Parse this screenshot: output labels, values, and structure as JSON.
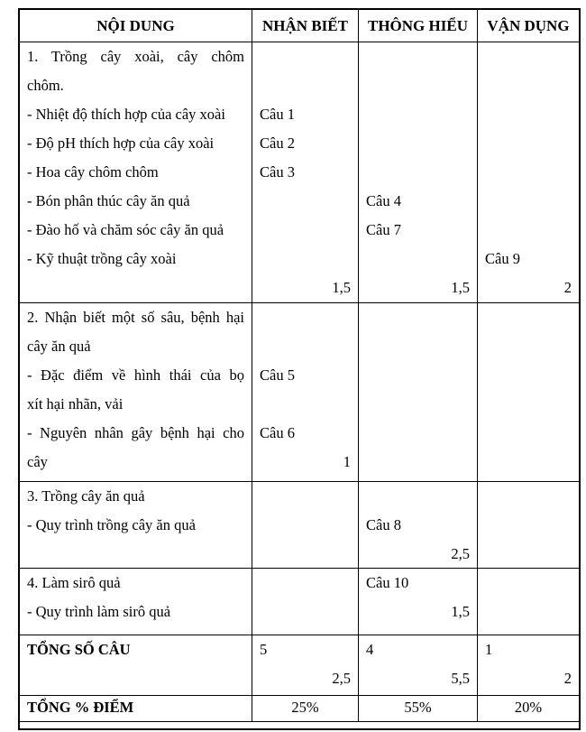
{
  "doc": {
    "header": [
      "NỘI DUNG",
      "NHẬN BIẾT",
      "THÔNG HIỂU",
      "VẬN DỤNG"
    ],
    "s1": {
      "content": [
        "1. Trồng cây xoài, cây chôm",
        "chôm.",
        "- Nhiệt độ thích hợp của cây xoài",
        "- Độ pH thích hợp của cây xoài",
        "- Hoa cây chôm chôm",
        "- Bón phân thúc cây ăn quả",
        "- Đào hố và chăm sóc cây ăn quả",
        "- Kỹ thuật trồng cây xoài"
      ],
      "nhan_biet": {
        "q": [
          "Câu 1",
          "Câu 2",
          "Câu 3"
        ],
        "score": "1,5"
      },
      "thong_hieu": {
        "q": [
          "Câu 4",
          "Câu 7"
        ],
        "score": "1,5"
      },
      "van_dung": {
        "q": [
          "Câu 9"
        ],
        "score": "2"
      }
    },
    "s2": {
      "content": [
        "2. Nhận biết một số sâu, bệnh hại",
        "cây ăn quả",
        "- Đặc điểm về hình thái của bọ",
        "xít hại nhãn, vải",
        "- Nguyên nhân gây bệnh hại cho",
        "cây"
      ],
      "nhan_biet": {
        "q": [
          "Câu 5",
          "Câu 6"
        ],
        "score": "1"
      }
    },
    "s3": {
      "content": [
        "3. Trồng cây ăn quả",
        "- Quy trình trồng cây ăn quả"
      ],
      "thong_hieu": {
        "q": [
          "Câu 8"
        ],
        "score": "2,5"
      }
    },
    "s4": {
      "content": [
        "4. Làm sirô quả",
        "- Quy trình làm sirô quả"
      ],
      "thong_hieu": {
        "q": [
          "Câu 10"
        ],
        "score": "1,5"
      }
    },
    "total_questions": {
      "label": "TỔNG SỐ CÂU",
      "nhan_biet": {
        "count": "5",
        "score": "2,5"
      },
      "thong_hieu": {
        "count": "4",
        "score": "5,5"
      },
      "van_dung": {
        "count": "1",
        "score": "2"
      }
    },
    "total_percent": {
      "label": "TỔNG % ĐIỂM",
      "nhan_biet": "25%",
      "thong_hieu": "55%",
      "van_dung": "20%"
    }
  }
}
